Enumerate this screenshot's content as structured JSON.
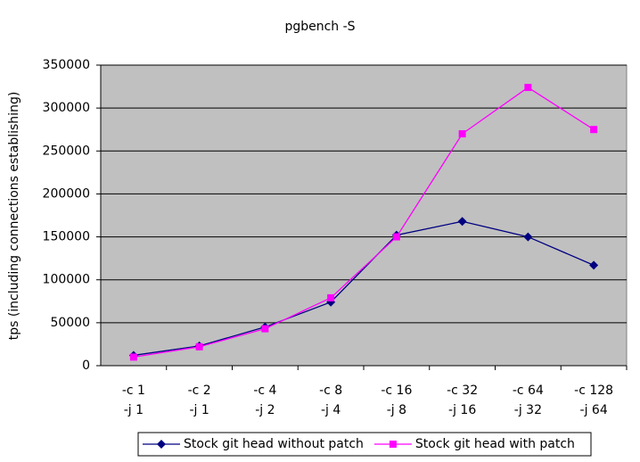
{
  "chart_data": {
    "type": "line",
    "title": "pgbench -S",
    "y_label": "tps (including connections establishing)",
    "categories": [
      [
        "-c 1",
        "-j 1"
      ],
      [
        "-c 2",
        "-j 1"
      ],
      [
        "-c 4",
        "-j 2"
      ],
      [
        "-c 8",
        "-j 4"
      ],
      [
        "-c 16",
        "-j 8"
      ],
      [
        "-c 32",
        "-j 16"
      ],
      [
        "-c 64",
        "-j 32"
      ],
      [
        "-c 128",
        "-j 64"
      ]
    ],
    "series": [
      {
        "name": "Stock git head without patch",
        "color": "#000080",
        "marker": "diamond",
        "values": [
          12000,
          23000,
          45000,
          74000,
          152000,
          168000,
          150000,
          117000
        ]
      },
      {
        "name": "Stock git head with patch",
        "color": "#ff00ff",
        "marker": "square",
        "values": [
          10000,
          22000,
          43000,
          79000,
          150000,
          270000,
          324000,
          275000
        ]
      }
    ],
    "ylim": [
      0,
      350000
    ],
    "yticks": [
      0,
      50000,
      100000,
      150000,
      200000,
      250000,
      300000,
      350000
    ],
    "grid": true,
    "legend": "bottom"
  }
}
